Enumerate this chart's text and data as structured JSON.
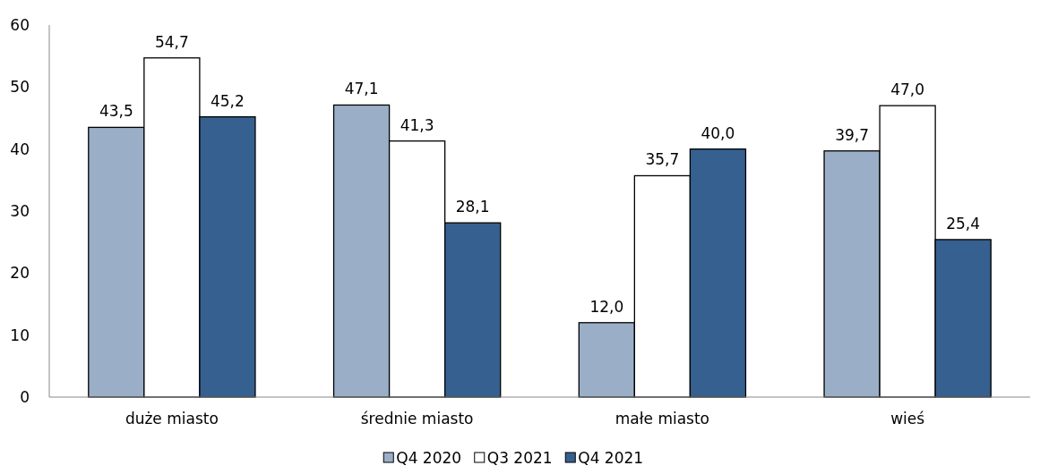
{
  "chart_data": {
    "type": "bar",
    "categories": [
      "duże miasto",
      "średnie miasto",
      "małe miasto",
      "wieś"
    ],
    "series": [
      {
        "name": "Q4 2020",
        "color": "#9aafc7",
        "values": [
          43.5,
          47.1,
          12.0,
          39.7
        ],
        "value_labels": [
          "43,5",
          "47,1",
          "12,0",
          "39,7"
        ]
      },
      {
        "name": "Q3 2021",
        "color": "#ffffff",
        "values": [
          54.7,
          41.3,
          35.7,
          47.0
        ],
        "value_labels": [
          "54,7",
          "41,3",
          "35,7",
          "47,0"
        ]
      },
      {
        "name": "Q4 2021",
        "color": "#36608f",
        "values": [
          45.2,
          28.1,
          40.0,
          25.4
        ],
        "value_labels": [
          "45,2",
          "28,1",
          "40,0",
          "25,4"
        ]
      }
    ],
    "ylim": [
      0,
      60
    ],
    "yticks": [
      0,
      10,
      20,
      30,
      40,
      50,
      60
    ],
    "grid": false,
    "legend": "bottom"
  }
}
